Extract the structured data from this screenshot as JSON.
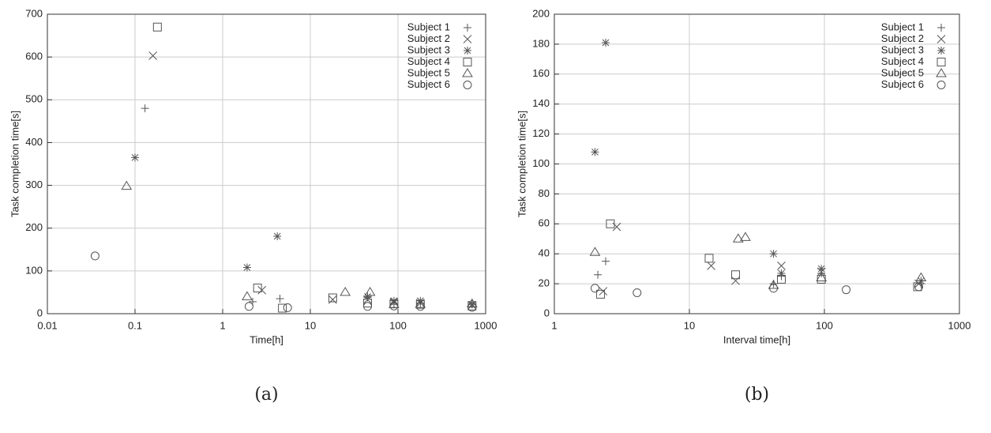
{
  "chart_data": [
    {
      "type": "scatter",
      "caption": "(a)",
      "xlabel": "Time[h]",
      "ylabel": "Task completion time[s]",
      "xscale": "log",
      "xlim": [
        0.01,
        1000
      ],
      "xticks": [
        0.01,
        0.1,
        1,
        10,
        100,
        1000
      ],
      "ylim": [
        0,
        700
      ],
      "yticks": [
        0,
        100,
        200,
        300,
        400,
        500,
        600,
        700
      ],
      "grid": true,
      "legend": "top-right",
      "series": [
        {
          "name": "Subject 1",
          "marker": "plus",
          "color": "#555555",
          "x": [
            0.13,
            2.2,
            4.5,
            45,
            90,
            180,
            700
          ],
          "values": [
            480,
            28,
            35,
            38,
            22,
            25,
            22
          ]
        },
        {
          "name": "Subject 2",
          "marker": "cross",
          "color": "#555555",
          "x": [
            0.16,
            2.8,
            18,
            45,
            90,
            180,
            700
          ],
          "values": [
            603,
            55,
            33,
            33,
            27,
            25,
            20
          ]
        },
        {
          "name": "Subject 3",
          "marker": "star",
          "color": "#555555",
          "x": [
            0.1,
            1.9,
            4.2,
            45,
            90,
            180,
            700
          ],
          "values": [
            365,
            108,
            181,
            40,
            30,
            30,
            22
          ]
        },
        {
          "name": "Subject 4",
          "marker": "square",
          "color": "#555555",
          "x": [
            0.18,
            2.5,
            4.8,
            18,
            45,
            90,
            180,
            700
          ],
          "values": [
            670,
            60,
            13,
            37,
            25,
            23,
            22,
            18
          ]
        },
        {
          "name": "Subject 5",
          "marker": "triangle",
          "color": "#555555",
          "x": [
            0.08,
            1.9,
            25,
            48,
            90,
            180,
            700
          ],
          "values": [
            298,
            40,
            50,
            50,
            22,
            22,
            23
          ]
        },
        {
          "name": "Subject 6",
          "marker": "circle",
          "color": "#555555",
          "x": [
            0.035,
            2,
            5.5,
            45,
            90,
            180,
            700
          ],
          "values": [
            135,
            17,
            14,
            17,
            18,
            17,
            15
          ]
        }
      ]
    },
    {
      "type": "scatter",
      "caption": "(b)",
      "xlabel": "Interval time[h]",
      "ylabel": "Task completion time[s]",
      "xscale": "log",
      "xlim": [
        1,
        1000
      ],
      "xticks": [
        1,
        10,
        100,
        1000
      ],
      "ylim": [
        0,
        200
      ],
      "yticks": [
        0,
        20,
        40,
        60,
        80,
        100,
        120,
        140,
        160,
        180,
        200
      ],
      "grid": true,
      "legend": "top-right",
      "series": [
        {
          "name": "Subject 1",
          "marker": "plus",
          "color": "#555555",
          "x": [
            2.1,
            2.4,
            42,
            48,
            95,
            520
          ],
          "values": [
            26,
            35,
            20,
            25,
            27,
            20
          ]
        },
        {
          "name": "Subject 2",
          "marker": "cross",
          "color": "#555555",
          "x": [
            2.3,
            2.9,
            14.5,
            22,
            48,
            95,
            500
          ],
          "values": [
            15,
            58,
            32,
            22,
            32,
            28,
            20
          ]
        },
        {
          "name": "Subject 3",
          "marker": "star",
          "color": "#555555",
          "x": [
            2,
            2.4,
            42,
            48,
            95,
            520
          ],
          "values": [
            108,
            181,
            40,
            27,
            30,
            22
          ]
        },
        {
          "name": "Subject 4",
          "marker": "square",
          "color": "#555555",
          "x": [
            2.6,
            2.2,
            14,
            22,
            48,
            95,
            490
          ],
          "values": [
            60,
            13,
            37,
            26,
            23,
            23,
            18
          ]
        },
        {
          "name": "Subject 5",
          "marker": "triangle",
          "color": "#555555",
          "x": [
            2,
            23,
            26,
            42,
            95,
            520
          ],
          "values": [
            41,
            50,
            51,
            19,
            24,
            24
          ]
        },
        {
          "name": "Subject 6",
          "marker": "circle",
          "color": "#555555",
          "x": [
            2,
            4.1,
            42,
            145,
            500
          ],
          "values": [
            17,
            14,
            17,
            16,
            18
          ]
        }
      ]
    }
  ]
}
